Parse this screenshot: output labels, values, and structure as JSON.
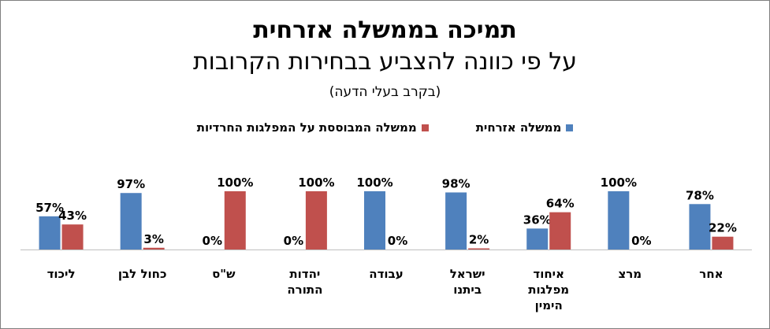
{
  "chart_data": {
    "type": "bar",
    "title": "תמיכה בממשלה אזרחית",
    "subtitle": "על פי כוונה להצביע בבחירות הקרובות",
    "note": "(בקרב בעלי הדעה)",
    "legend_position": "top",
    "grid": false,
    "ylim": [
      0,
      100
    ],
    "categories": [
      "ליכוד",
      "כחול לבן",
      "ש\"ס",
      "יהדות התורה",
      "עבודה",
      "ישראל ביתנו",
      "איחוד מפלגות הימין",
      "מרצ",
      "אחר"
    ],
    "category_lines": [
      [
        "ליכוד"
      ],
      [
        "כחול לבן"
      ],
      [
        "ש\"ס"
      ],
      [
        "יהדות",
        "התורה"
      ],
      [
        "עבודה"
      ],
      [
        "ישראל",
        "ביתנו"
      ],
      [
        "איחוד",
        "מפלגות",
        "הימין"
      ],
      [
        "מרצ"
      ],
      [
        "אחר"
      ]
    ],
    "series": [
      {
        "name": "ממשלה אזרחית",
        "color": "#4f81bd",
        "values": [
          57,
          97,
          0,
          0,
          100,
          98,
          36,
          100,
          78
        ],
        "labels": [
          "57%",
          "97%",
          "0%",
          "0%",
          "100%",
          "98%",
          "36%",
          "100%",
          "78%"
        ]
      },
      {
        "name": "ממשלה המבוססת על המפלגות החרדיות",
        "color": "#c0504d",
        "values": [
          43,
          3,
          100,
          100,
          0,
          2,
          64,
          0,
          22
        ],
        "labels": [
          "43%",
          "3%",
          "100%",
          "100%",
          "0%",
          "2%",
          "64%",
          "0%",
          "22%"
        ]
      }
    ]
  }
}
